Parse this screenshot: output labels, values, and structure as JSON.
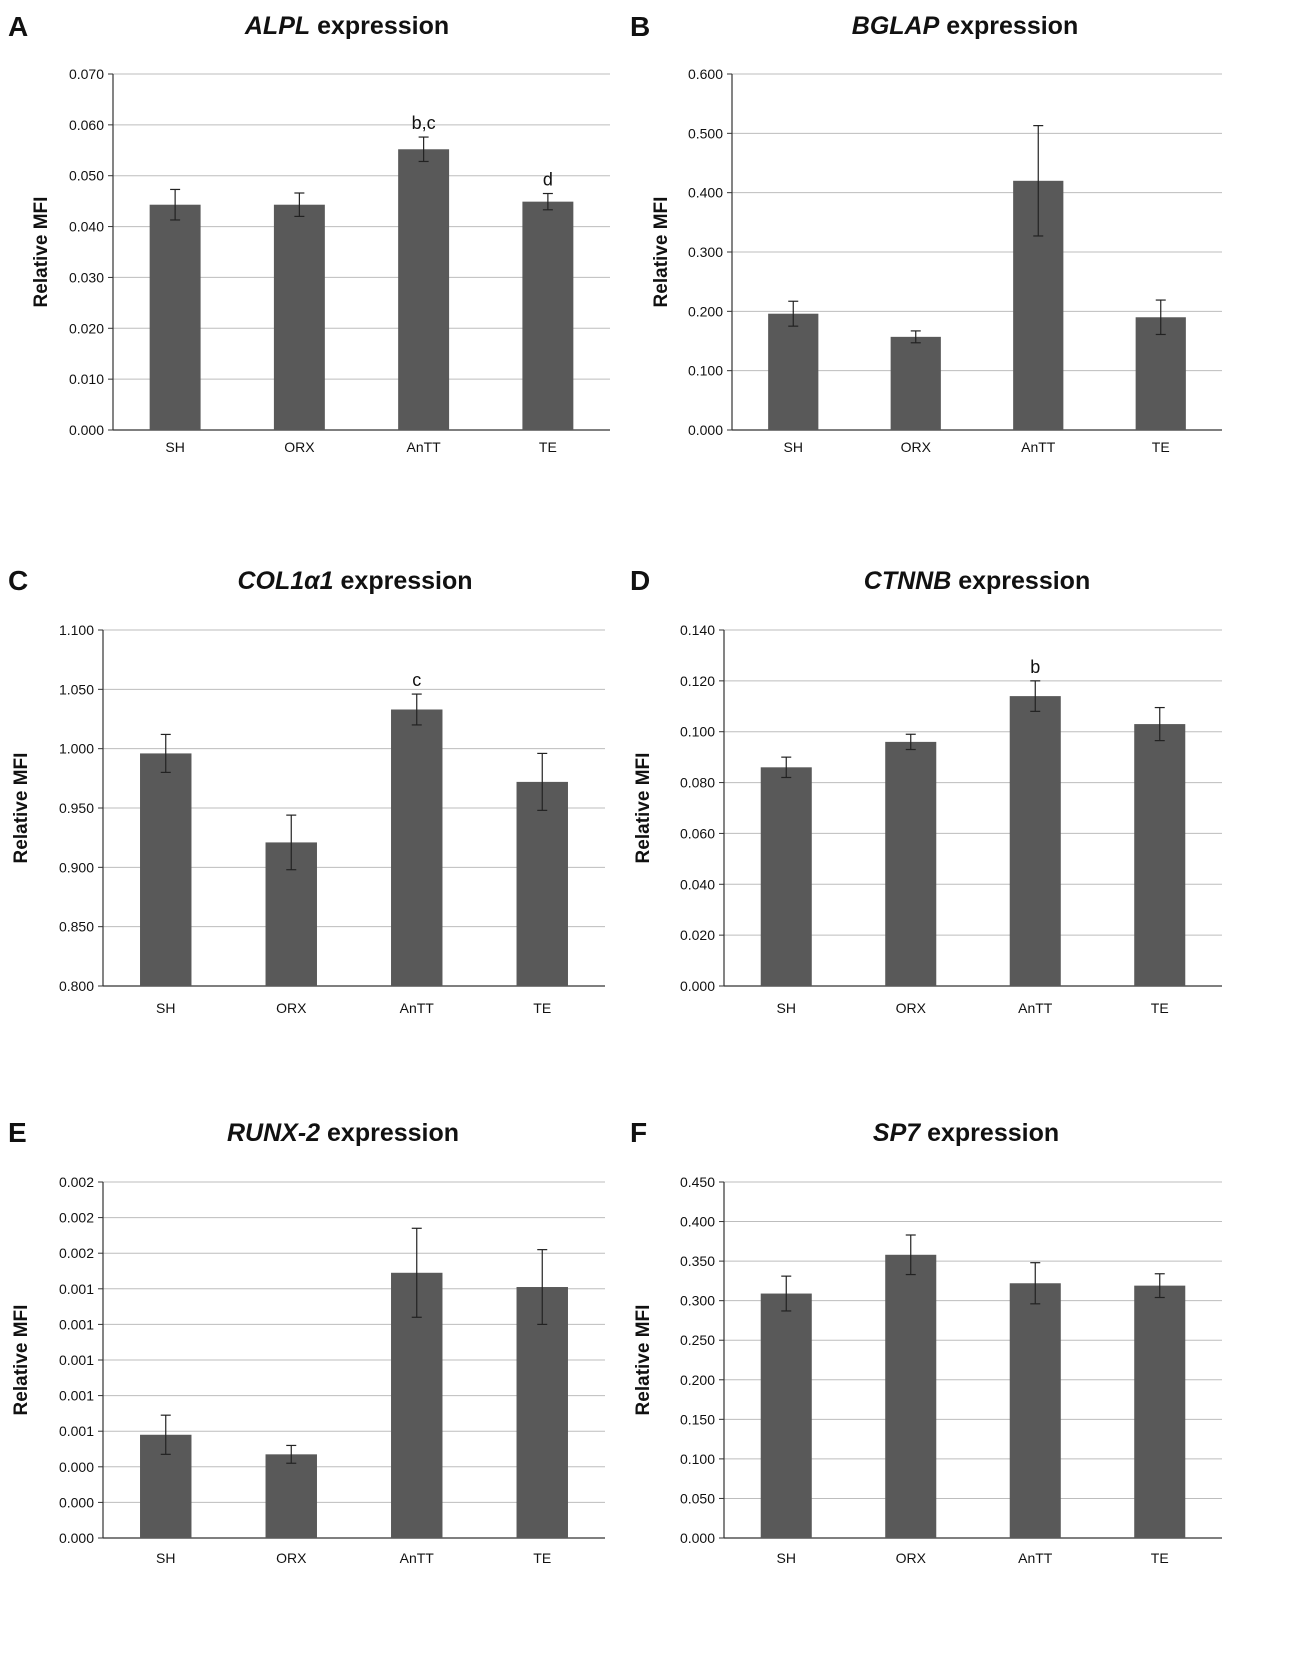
{
  "chart_data": [
    {
      "panel": "A",
      "type": "bar",
      "title_gene": "ALPL",
      "title_rest": " expression",
      "ylabel": "Relative MFI",
      "categories": [
        "SH",
        "ORX",
        "AnTT",
        "TE"
      ],
      "values": [
        0.0443,
        0.0443,
        0.0552,
        0.0449
      ],
      "errors": [
        0.003,
        0.0023,
        0.0024,
        0.0016
      ],
      "annotations": [
        "",
        "",
        "b,c",
        "d"
      ],
      "ylim": [
        0,
        0.07
      ],
      "yticks": [
        "0.000",
        "0.010",
        "0.020",
        "0.030",
        "0.040",
        "0.050",
        "0.060",
        "0.070"
      ],
      "grid": true
    },
    {
      "panel": "B",
      "type": "bar",
      "title_gene": "BGLAP",
      "title_rest": " expression",
      "ylabel": "Relative MFI",
      "categories": [
        "SH",
        "ORX",
        "AnTT",
        "TE"
      ],
      "values": [
        0.196,
        0.157,
        0.42,
        0.19
      ],
      "errors": [
        0.021,
        0.01,
        0.093,
        0.029
      ],
      "annotations": [
        "",
        "",
        "",
        ""
      ],
      "ylim": [
        0,
        0.6
      ],
      "yticks": [
        "0.000",
        "0.100",
        "0.200",
        "0.300",
        "0.400",
        "0.500",
        "0.600"
      ],
      "grid": true
    },
    {
      "panel": "C",
      "type": "bar",
      "title_gene": "COL1α1",
      "title_rest": " expression",
      "ylabel": "Relative MFI",
      "categories": [
        "SH",
        "ORX",
        "AnTT",
        "TE"
      ],
      "values": [
        0.996,
        0.921,
        1.033,
        0.972
      ],
      "errors": [
        0.016,
        0.023,
        0.013,
        0.024
      ],
      "annotations": [
        "",
        "",
        "c",
        ""
      ],
      "ylim": [
        0.8,
        1.1
      ],
      "yticks": [
        "0.800",
        "0.850",
        "0.900",
        "0.950",
        "1.000",
        "1.050",
        "1.100"
      ],
      "grid": true
    },
    {
      "panel": "D",
      "type": "bar",
      "title_gene": "CTNNB",
      "title_rest": " expression",
      "ylabel": "Relative MFI",
      "categories": [
        "SH",
        "ORX",
        "AnTT",
        "TE"
      ],
      "values": [
        0.086,
        0.096,
        0.114,
        0.103
      ],
      "errors": [
        0.004,
        0.003,
        0.006,
        0.0065
      ],
      "annotations": [
        "",
        "",
        "b",
        ""
      ],
      "ylim": [
        0,
        0.14
      ],
      "yticks": [
        "0.000",
        "0.020",
        "0.040",
        "0.060",
        "0.080",
        "0.100",
        "0.120",
        "0.140"
      ],
      "grid": true
    },
    {
      "panel": "E",
      "type": "bar",
      "title_gene": "RUNX-2",
      "title_rest": " expression",
      "ylabel": "Relative MFI",
      "categories": [
        "SH",
        "ORX",
        "AnTT",
        "TE"
      ],
      "values": [
        0.00058,
        0.00047,
        0.00149,
        0.00141
      ],
      "errors": [
        0.00011,
        5e-05,
        0.00025,
        0.00021
      ],
      "annotations": [
        "",
        "",
        "",
        ""
      ],
      "ylim": [
        0,
        0.002
      ],
      "yticks": [
        "0.000",
        "0.000",
        "0.000",
        "0.001",
        "0.001",
        "0.001",
        "0.001",
        "0.001",
        "0.002",
        "0.002",
        "0.002"
      ],
      "grid": true
    },
    {
      "panel": "F",
      "type": "bar",
      "title_gene": "SP7",
      "title_rest": " expression",
      "ylabel": "Relative MFI",
      "categories": [
        "SH",
        "ORX",
        "AnTT",
        "TE"
      ],
      "values": [
        0.309,
        0.358,
        0.322,
        0.319
      ],
      "errors": [
        0.022,
        0.025,
        0.026,
        0.015
      ],
      "annotations": [
        "",
        "",
        "",
        ""
      ],
      "ylim": [
        0,
        0.45
      ],
      "yticks": [
        "0.000",
        "0.050",
        "0.100",
        "0.150",
        "0.200",
        "0.250",
        "0.300",
        "0.350",
        "0.400",
        "0.450"
      ],
      "grid": true
    }
  ],
  "colors": {
    "bar": "#595959",
    "grid": "#bdbdbd",
    "axis": "#333333",
    "text": "#111111"
  }
}
